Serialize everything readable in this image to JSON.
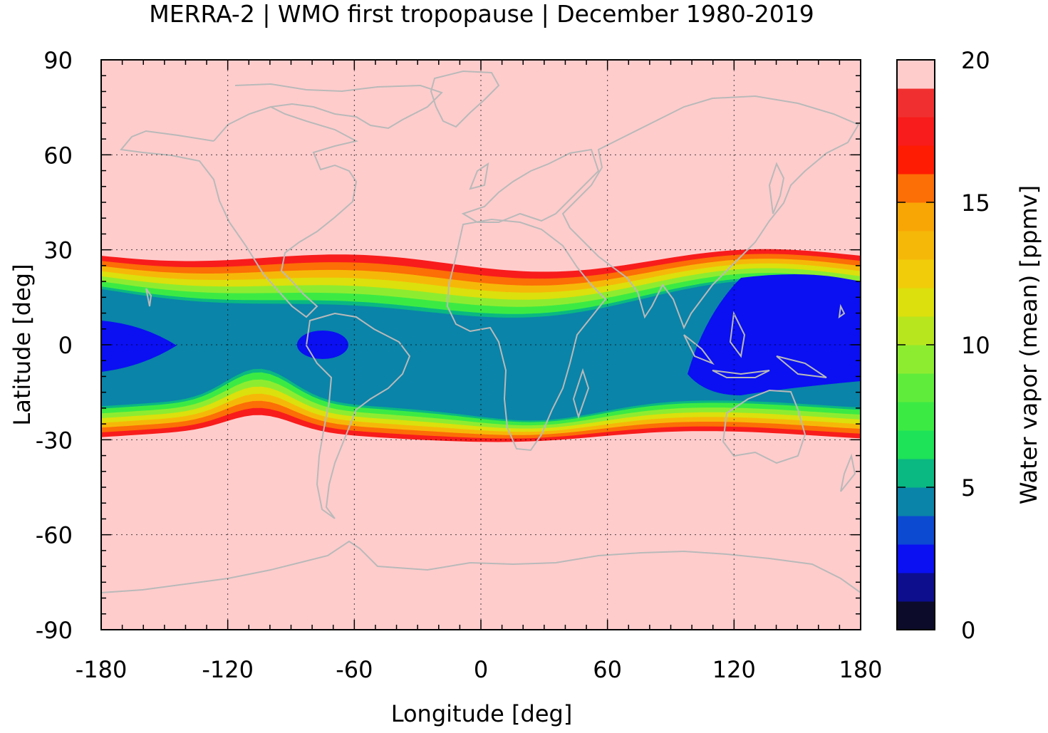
{
  "chart_data": {
    "type": "heatmap",
    "title": "MERRA-2 | WMO first tropopause | December 1980-2019",
    "xlabel": "Longitude [deg]",
    "ylabel": "Latitude [deg]",
    "xlim": [
      -180,
      180
    ],
    "ylim": [
      -90,
      90
    ],
    "x_ticks": [
      -180,
      -120,
      -60,
      0,
      60,
      120,
      180
    ],
    "y_ticks": [
      90,
      60,
      30,
      0,
      -30,
      -60,
      -90
    ],
    "grid": true,
    "colorbar": {
      "label": "Water vapor (mean) [ppmv]",
      "range": [
        0,
        20
      ],
      "ticks": [
        20,
        15,
        10,
        5,
        0
      ],
      "step": 1,
      "colors": [
        "#0c0c2a",
        "#0c0e8e",
        "#0a10f2",
        "#0c4ad2",
        "#0a84a8",
        "#0ab882",
        "#1ee258",
        "#3cea44",
        "#60ec3a",
        "#8eec30",
        "#b8e61e",
        "#dce00c",
        "#f0cc0a",
        "#f6b808",
        "#f8a606",
        "#fc6e06",
        "#fe1c02",
        "#f81c1c",
        "#f03030",
        "#f47878",
        "#ffcccc"
      ]
    },
    "annotations": [],
    "field_summary": {
      "values_ppmv_outside_tropics": 20,
      "north_band_edge_lat": 30,
      "south_band_edge_lat": -31,
      "minimum_regions": [
        {
          "lon_center": -170,
          "lat_center": 0,
          "value": 2.5
        },
        {
          "lon_center": -75,
          "lat_center": 0,
          "value": 2.5
        },
        {
          "lon_center": 135,
          "lat_center": 5,
          "value": 2.5
        }
      ]
    }
  }
}
